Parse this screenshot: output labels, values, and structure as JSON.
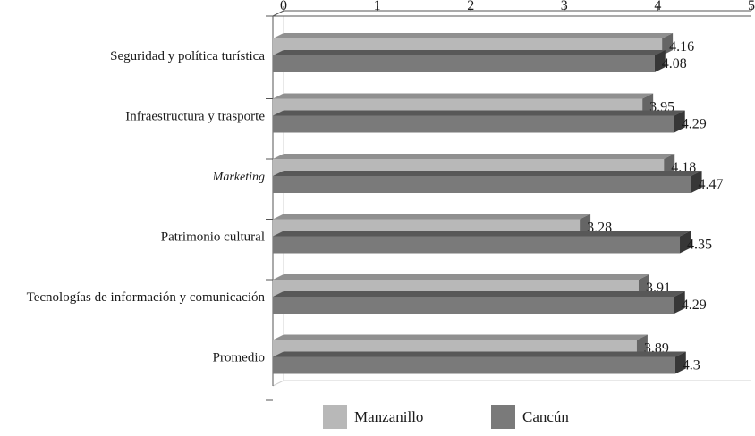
{
  "chart_data": {
    "type": "bar",
    "orientation": "horizontal",
    "style": "3d",
    "categories": [
      "Seguridad y política turística",
      "Infraestructura y trasporte",
      "Marketing",
      "Patrimonio cultural",
      "Tecnologías de información y comunicación",
      "Promedio"
    ],
    "italic_categories": [
      "Marketing"
    ],
    "series": [
      {
        "name": "Manzanillo",
        "color": "#b8b8b8",
        "values": [
          4.16,
          3.95,
          4.18,
          3.28,
          3.91,
          3.89
        ],
        "labels": [
          "4.16",
          "3.95",
          "4.18",
          "3.28",
          "3.91",
          "3.89"
        ]
      },
      {
        "name": "Cancún",
        "color": "#7a7a7a",
        "values": [
          4.08,
          4.29,
          4.47,
          4.35,
          4.29,
          4.3
        ],
        "labels": [
          "4.08",
          "4.29",
          "4.47",
          "4.35",
          "4.29",
          "4.3"
        ]
      }
    ],
    "x_ticks": [
      "0",
      "1",
      "2",
      "3",
      "4",
      "5"
    ],
    "xlim": [
      0,
      5
    ],
    "axis_position": "top",
    "grid": false,
    "legend_position": "bottom"
  }
}
